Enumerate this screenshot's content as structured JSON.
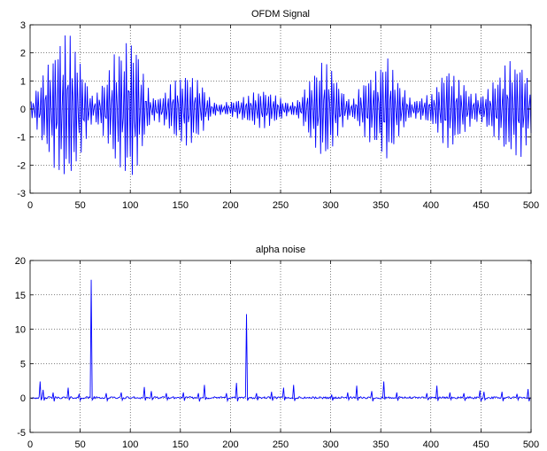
{
  "chart_data": [
    {
      "type": "line",
      "title": "OFDM Signal",
      "xlabel": "",
      "ylabel": "",
      "xlim": [
        0,
        500
      ],
      "ylim": [
        -3,
        3
      ],
      "xticks": [
        0,
        50,
        100,
        150,
        200,
        250,
        300,
        350,
        400,
        450,
        500
      ],
      "yticks": [
        -3,
        -2,
        -1,
        0,
        1,
        2,
        3
      ],
      "grid": true,
      "legend": "none",
      "series_color": "#0000ff",
      "series": [
        {
          "name": "",
          "samples": 500,
          "carrier_cycles_per_sample": 0.41,
          "envelope": [
            [
              0,
              0.3
            ],
            [
              15,
              1.6
            ],
            [
              30,
              2.7
            ],
            [
              40,
              2.8
            ],
            [
              50,
              1.7
            ],
            [
              62,
              0.4
            ],
            [
              75,
              1.2
            ],
            [
              85,
              2.2
            ],
            [
              95,
              2.5
            ],
            [
              103,
              2.8
            ],
            [
              110,
              1.6
            ],
            [
              120,
              0.4
            ],
            [
              130,
              0.5
            ],
            [
              145,
              1.2
            ],
            [
              158,
              1.4
            ],
            [
              168,
              1.1
            ],
            [
              180,
              0.3
            ],
            [
              190,
              0.2
            ],
            [
              205,
              0.35
            ],
            [
              220,
              0.6
            ],
            [
              232,
              0.75
            ],
            [
              245,
              0.5
            ],
            [
              258,
              0.2
            ],
            [
              268,
              0.4
            ],
            [
              280,
              1.3
            ],
            [
              292,
              2.0
            ],
            [
              300,
              1.6
            ],
            [
              312,
              0.6
            ],
            [
              320,
              0.3
            ],
            [
              335,
              1.2
            ],
            [
              348,
              1.6
            ],
            [
              355,
              2.1
            ],
            [
              368,
              1.0
            ],
            [
              380,
              0.3
            ],
            [
              400,
              0.6
            ],
            [
              415,
              1.6
            ],
            [
              425,
              1.3
            ],
            [
              440,
              0.6
            ],
            [
              450,
              0.5
            ],
            [
              465,
              1.2
            ],
            [
              478,
              1.8
            ],
            [
              490,
              1.7
            ],
            [
              500,
              1.0
            ]
          ]
        }
      ]
    },
    {
      "type": "line",
      "title": "alpha noise",
      "xlabel": "",
      "ylabel": "",
      "xlim": [
        0,
        500
      ],
      "ylim": [
        -5,
        20
      ],
      "xticks": [
        0,
        50,
        100,
        150,
        200,
        250,
        300,
        350,
        400,
        450,
        500
      ],
      "yticks": [
        -5,
        0,
        5,
        10,
        15,
        20
      ],
      "grid": true,
      "legend": "none",
      "series_color": "#0000ff",
      "series": [
        {
          "name": "",
          "samples": 500,
          "baseline_amplitude": 0.15,
          "spikes": [
            [
              9,
              2.4
            ],
            [
              12,
              1.2
            ],
            [
              22,
              0.8
            ],
            [
              37,
              1.5
            ],
            [
              48,
              0.6
            ],
            [
              60,
              17.2
            ],
            [
              75,
              0.7
            ],
            [
              90,
              0.8
            ],
            [
              113,
              1.6
            ],
            [
              120,
              1.0
            ],
            [
              135,
              0.7
            ],
            [
              152,
              0.8
            ],
            [
              167,
              0.7
            ],
            [
              173,
              1.9
            ],
            [
              195,
              0.7
            ],
            [
              205,
              2.2
            ],
            [
              215,
              12.2
            ],
            [
              225,
              0.7
            ],
            [
              240,
              0.9
            ],
            [
              252,
              1.5
            ],
            [
              262,
              1.9
            ],
            [
              300,
              0.5
            ],
            [
              316,
              0.8
            ],
            [
              325,
              1.8
            ],
            [
              340,
              1.0
            ],
            [
              352,
              2.4
            ],
            [
              365,
              0.8
            ],
            [
              395,
              0.7
            ],
            [
              405,
              1.8
            ],
            [
              418,
              0.8
            ],
            [
              432,
              0.7
            ],
            [
              448,
              1.1
            ],
            [
              452,
              0.9
            ],
            [
              470,
              0.9
            ],
            [
              485,
              0.6
            ],
            [
              496,
              1.3
            ]
          ]
        }
      ]
    }
  ]
}
